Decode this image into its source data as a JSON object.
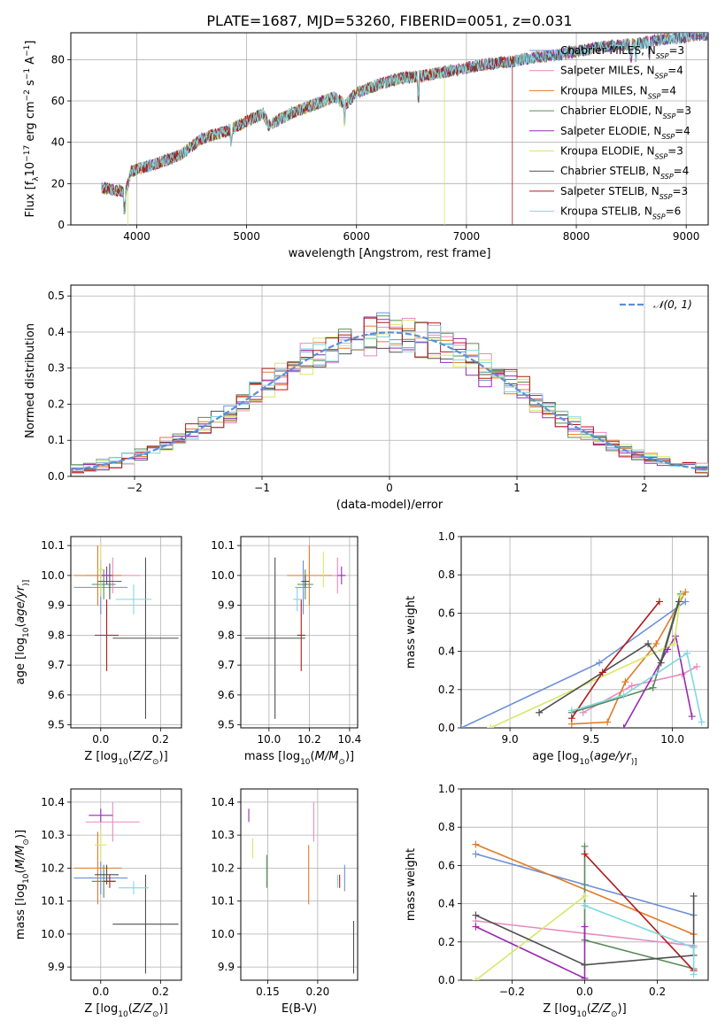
{
  "figure": {
    "title": "PLATE=1687, MJD=53260, FIBERID=0051, z=0.031"
  },
  "legend_top": [
    {
      "name": "Chabrier MILES",
      "sub": "SSP",
      "suffix": "=3",
      "color": "#6b8fd8"
    },
    {
      "name": "Salpeter MILES",
      "sub": "SSP",
      "suffix": "=4",
      "color": "#e889c0"
    },
    {
      "name": "Kroupa MILES",
      "sub": "SSP",
      "suffix": "=4",
      "color": "#e07b28"
    },
    {
      "name": "Chabrier ELODIE",
      "sub": "SSP",
      "suffix": "=3",
      "color": "#5a8a5a"
    },
    {
      "name": "Salpeter ELODIE",
      "sub": "SSP",
      "suffix": "=4",
      "color": "#9a2ab0"
    },
    {
      "name": "Kroupa ELODIE",
      "sub": "SSP",
      "suffix": "=3",
      "color": "#d6e86a"
    },
    {
      "name": "Chabrier STELIB",
      "sub": "SSP",
      "suffix": "=4",
      "color": "#505050"
    },
    {
      "name": "Salpeter STELIB",
      "sub": "SSP",
      "suffix": "=3",
      "color": "#b01a1a"
    },
    {
      "name": "Kroupa STELIB",
      "sub": "SSP",
      "suffix": "=6",
      "color": "#7fd8e0"
    }
  ],
  "legend_hist": {
    "label": "𝒩(0, 1)",
    "color": "#5b8fd8"
  },
  "chart_data": [
    {
      "id": "spectrum",
      "type": "line",
      "xlabel": "wavelength [Angstrom, rest frame]",
      "ylabel_parts": [
        "Flux [f",
        "λ",
        "10",
        "−17",
        " erg cm",
        "−2",
        " s",
        "−1",
        " A",
        "−1",
        "]"
      ],
      "xlim": [
        3400,
        9200
      ],
      "ylim": [
        0,
        93
      ],
      "xticks": [
        4000,
        5000,
        6000,
        7000,
        8000,
        9000
      ],
      "yticks": [
        0,
        20,
        40,
        60,
        80
      ],
      "continuum": [
        [
          3680,
          18
        ],
        [
          3900,
          16
        ],
        [
          3950,
          26
        ],
        [
          4000,
          27
        ],
        [
          4200,
          30
        ],
        [
          4400,
          34
        ],
        [
          4600,
          42
        ],
        [
          4800,
          45
        ],
        [
          5000,
          50
        ],
        [
          5150,
          54
        ],
        [
          5200,
          48
        ],
        [
          5400,
          54
        ],
        [
          5600,
          58
        ],
        [
          5800,
          62
        ],
        [
          5900,
          58
        ],
        [
          6000,
          64
        ],
        [
          6200,
          68
        ],
        [
          6400,
          71
        ],
        [
          6600,
          72
        ],
        [
          6800,
          74
        ],
        [
          7000,
          76
        ],
        [
          7200,
          78
        ],
        [
          7400,
          79
        ],
        [
          7600,
          81
        ],
        [
          7800,
          82
        ],
        [
          8000,
          84
        ],
        [
          8200,
          86
        ],
        [
          8400,
          87
        ],
        [
          8600,
          88
        ],
        [
          8800,
          90
        ],
        [
          9000,
          91
        ],
        [
          9100,
          92
        ]
      ],
      "dropouts": [
        {
          "series": "Kroupa ELODIE",
          "x": 6800
        },
        {
          "series": "Salpeter STELIB",
          "x": 7420
        },
        {
          "series": "Kroupa ELODIE",
          "x": 3920
        }
      ]
    },
    {
      "id": "residual-histogram",
      "type": "step",
      "xlabel": "(data-model)/error",
      "ylabel": "Normed distribution",
      "xlim": [
        -2.5,
        2.5
      ],
      "ylim": [
        0,
        0.53
      ],
      "xticks": [
        -2,
        -1,
        0,
        1,
        2
      ],
      "yticks": [
        0.0,
        0.1,
        0.2,
        0.3,
        0.4,
        0.5
      ],
      "gaussian": {
        "mean": 0,
        "sigma": 1
      },
      "bin_width": 0.1
    },
    {
      "id": "age-vs-Z",
      "type": "errorbar",
      "xlabel_parts": [
        "Z [log",
        "10",
        "(",
        "Z/Z",
        "⊙",
        ")]"
      ],
      "ylabel_parts": [
        "age  [log",
        "10",
        "(",
        "age/yr",
        ")]"
      ],
      "xlim": [
        -0.1,
        0.27
      ],
      "ylim": [
        9.49,
        10.13
      ],
      "xticks": [
        0.0,
        0.2
      ],
      "yticks": [
        9.5,
        9.6,
        9.7,
        9.8,
        9.9,
        10.0,
        10.1
      ],
      "points": [
        {
          "series": "Chabrier MILES",
          "x": 0.0,
          "y": 9.96,
          "xerr": 0.09,
          "yerr": 0.09
        },
        {
          "series": "Salpeter MILES",
          "x": 0.04,
          "y": 10.0,
          "xerr": 0.09,
          "yerr": 0.06
        },
        {
          "series": "Kroupa MILES",
          "x": -0.01,
          "y": 10.0,
          "xerr": 0.08,
          "yerr": 0.1
        },
        {
          "series": "Chabrier ELODIE",
          "x": 0.01,
          "y": 9.97,
          "xerr": 0.04,
          "yerr": 0.05
        },
        {
          "series": "Salpeter ELODIE",
          "x": 0.02,
          "y": 10.0,
          "xerr": 0.02,
          "yerr": 0.03
        },
        {
          "series": "Kroupa ELODIE",
          "x": 0.0,
          "y": 10.02,
          "xerr": 0.01,
          "yerr": 0.09
        },
        {
          "series": "Chabrier STELIB",
          "x": 0.03,
          "y": 9.98,
          "xerr": 0.04,
          "yerr": 0.06
        },
        {
          "series": "Salpeter STELIB",
          "x": 0.02,
          "y": 9.8,
          "xerr": 0.04,
          "yerr": 0.12
        },
        {
          "series": "Chabrier STELIB",
          "x": 0.15,
          "y": 9.79,
          "xerr": 0.11,
          "yerr": 0.27
        },
        {
          "series": "Kroupa STELIB",
          "x": 0.11,
          "y": 9.92,
          "xerr": 0.06,
          "yerr": 0.05
        }
      ]
    },
    {
      "id": "age-vs-mass",
      "type": "errorbar",
      "xlabel_parts": [
        "mass [log",
        "10",
        "(",
        "M/M",
        "⊙",
        ")]"
      ],
      "xlim": [
        9.86,
        10.44
      ],
      "ylim": [
        9.49,
        10.13
      ],
      "xticks": [
        10.0,
        10.2,
        10.4
      ],
      "yticks": [
        9.5,
        9.6,
        9.7,
        9.8,
        9.9,
        10.0,
        10.1
      ],
      "points": [
        {
          "series": "Chabrier MILES",
          "x": 10.17,
          "y": 9.96,
          "xerr": 0.04,
          "yerr": 0.09
        },
        {
          "series": "Salpeter MILES",
          "x": 10.34,
          "y": 10.0,
          "xerr": 0.04,
          "yerr": 0.06
        },
        {
          "series": "Kroupa MILES",
          "x": 10.2,
          "y": 10.0,
          "xerr": 0.11,
          "yerr": 0.1
        },
        {
          "series": "Chabrier ELODIE",
          "x": 10.18,
          "y": 9.97,
          "xerr": 0.04,
          "yerr": 0.05
        },
        {
          "series": "Salpeter ELODIE",
          "x": 10.36,
          "y": 10.0,
          "xerr": 0.02,
          "yerr": 0.03
        },
        {
          "series": "Kroupa ELODIE",
          "x": 10.27,
          "y": 10.02,
          "xerr": 0.0,
          "yerr": 0.06
        },
        {
          "series": "Chabrier STELIB",
          "x": 10.18,
          "y": 9.98,
          "xerr": 0.02,
          "yerr": 0.02
        },
        {
          "series": "Salpeter STELIB",
          "x": 10.16,
          "y": 9.8,
          "xerr": 0.02,
          "yerr": 0.12
        },
        {
          "series": "Chabrier STELIB",
          "x": 10.03,
          "y": 9.79,
          "xerr": 0.15,
          "yerr": 0.27
        },
        {
          "series": "Kroupa STELIB",
          "x": 10.14,
          "y": 9.92,
          "xerr": 0.02,
          "yerr": 0.04
        }
      ]
    },
    {
      "id": "mass-weight-vs-age",
      "type": "line",
      "xlabel_parts": [
        "age  [log",
        "10",
        "(",
        "age/yr",
        ")]"
      ],
      "ylabel": "mass weight",
      "xlim": [
        8.7,
        10.22
      ],
      "ylim": [
        0,
        1
      ],
      "xticks": [
        9.0,
        9.5,
        10.0
      ],
      "yticks": [
        0.0,
        0.2,
        0.4,
        0.6,
        0.8,
        1.0
      ],
      "series": [
        {
          "name": "Chabrier MILES",
          "points": [
            [
              8.7,
              0.0
            ],
            [
              9.55,
              0.34
            ],
            [
              10.08,
              0.66
            ]
          ]
        },
        {
          "name": "Salpeter MILES",
          "points": [
            [
              9.45,
              0.08
            ],
            [
              9.75,
              0.22
            ],
            [
              10.06,
              0.28
            ],
            [
              10.15,
              0.32
            ]
          ]
        },
        {
          "name": "Kroupa MILES",
          "points": [
            [
              9.38,
              0.02
            ],
            [
              9.6,
              0.03
            ],
            [
              9.71,
              0.24
            ],
            [
              9.9,
              0.44
            ],
            [
              10.08,
              0.71
            ]
          ]
        },
        {
          "name": "Chabrier ELODIE",
          "points": [
            [
              9.38,
              0.08
            ],
            [
              9.88,
              0.21
            ],
            [
              10.05,
              0.7
            ]
          ]
        },
        {
          "name": "Salpeter ELODIE",
          "points": [
            [
              9.7,
              0.0
            ],
            [
              9.97,
              0.41
            ],
            [
              10.02,
              0.48
            ],
            [
              10.12,
              0.06
            ]
          ]
        },
        {
          "name": "Kroupa ELODIE",
          "points": [
            [
              8.88,
              0.0
            ],
            [
              10.01,
              0.44
            ],
            [
              10.05,
              0.69
            ]
          ]
        },
        {
          "name": "Chabrier STELIB",
          "points": [
            [
              9.18,
              0.08
            ],
            [
              9.85,
              0.44
            ],
            [
              9.93,
              0.34
            ],
            [
              10.04,
              0.66
            ]
          ]
        },
        {
          "name": "Salpeter STELIB",
          "points": [
            [
              9.38,
              0.05
            ],
            [
              9.57,
              0.29
            ],
            [
              9.92,
              0.66
            ]
          ]
        },
        {
          "name": "Kroupa STELIB",
          "points": [
            [
              9.38,
              0.09
            ],
            [
              9.7,
              0.17
            ],
            [
              10.09,
              0.39
            ],
            [
              10.18,
              0.03
            ]
          ]
        }
      ]
    },
    {
      "id": "mass-vs-Z",
      "type": "errorbar",
      "xlabel_parts": [
        "Z [log",
        "10",
        "(",
        "Z/Z",
        "⊙",
        ")]"
      ],
      "ylabel_parts": [
        "mass [log",
        "10",
        "(",
        "M/M",
        "⊙",
        ")]"
      ],
      "xlim": [
        -0.1,
        0.27
      ],
      "ylim": [
        9.86,
        10.44
      ],
      "xticks": [
        0.0,
        0.2
      ],
      "yticks": [
        9.9,
        10.0,
        10.1,
        10.2,
        10.3,
        10.4
      ],
      "points": [
        {
          "series": "Chabrier MILES",
          "x": 0.0,
          "y": 10.17,
          "xerr": 0.09,
          "yerr": 0.05
        },
        {
          "series": "Salpeter MILES",
          "x": 0.04,
          "y": 10.34,
          "xerr": 0.09,
          "yerr": 0.06
        },
        {
          "series": "Kroupa MILES",
          "x": -0.01,
          "y": 10.2,
          "xerr": 0.08,
          "yerr": 0.11
        },
        {
          "series": "Chabrier ELODIE",
          "x": 0.01,
          "y": 10.16,
          "xerr": 0.04,
          "yerr": 0.05
        },
        {
          "series": "Salpeter ELODIE",
          "x": 0.0,
          "y": 10.36,
          "xerr": 0.04,
          "yerr": 0.02
        },
        {
          "series": "Kroupa ELODIE",
          "x": 0.0,
          "y": 10.27,
          "xerr": 0.02,
          "yerr": 0.05
        },
        {
          "series": "Chabrier STELIB",
          "x": 0.02,
          "y": 10.18,
          "xerr": 0.04,
          "yerr": 0.03
        },
        {
          "series": "Salpeter STELIB",
          "x": 0.03,
          "y": 10.16,
          "xerr": 0.02,
          "yerr": 0.02
        },
        {
          "series": "Chabrier STELIB",
          "x": 0.15,
          "y": 10.03,
          "xerr": 0.11,
          "yerr": 0.15
        },
        {
          "series": "Kroupa STELIB",
          "x": 0.11,
          "y": 10.14,
          "xerr": 0.05,
          "yerr": 0.02
        }
      ]
    },
    {
      "id": "mass-vs-EBV",
      "type": "errorbar",
      "xlabel": "E(B-V)",
      "xlim": [
        0.123,
        0.24
      ],
      "ylim": [
        9.86,
        10.44
      ],
      "xticks": [
        0.15,
        0.2
      ],
      "yticks": [
        9.9,
        10.0,
        10.1,
        10.2,
        10.3,
        10.4
      ],
      "points": [
        {
          "series": "Chabrier MILES",
          "x": 0.227,
          "y": 10.17,
          "xerr": 0,
          "yerr": 0.04
        },
        {
          "series": "Salpeter MILES",
          "x": 0.196,
          "y": 10.34,
          "xerr": 0,
          "yerr": 0.06
        },
        {
          "series": "Kroupa MILES",
          "x": 0.191,
          "y": 10.18,
          "xerr": 0,
          "yerr": 0.09
        },
        {
          "series": "Chabrier ELODIE",
          "x": 0.149,
          "y": 10.19,
          "xerr": 0,
          "yerr": 0.05
        },
        {
          "series": "Salpeter ELODIE",
          "x": 0.131,
          "y": 10.36,
          "xerr": 0,
          "yerr": 0.02
        },
        {
          "series": "Kroupa ELODIE",
          "x": 0.135,
          "y": 10.26,
          "xerr": 0,
          "yerr": 0.03
        },
        {
          "series": "Chabrier STELIB",
          "x": 0.236,
          "y": 9.96,
          "xerr": 0,
          "yerr": 0.08
        },
        {
          "series": "Salpeter STELIB",
          "x": 0.222,
          "y": 10.16,
          "xerr": 0,
          "yerr": 0.02
        },
        {
          "series": "Kroupa STELIB",
          "x": 0.22,
          "y": 10.16,
          "xerr": 0,
          "yerr": 0.02
        }
      ]
    },
    {
      "id": "mass-weight-vs-Z",
      "type": "line",
      "xlabel_parts": [
        "Z [log",
        "10",
        "(",
        "Z/Z",
        "⊙",
        ")]"
      ],
      "ylabel": "mass weight",
      "xlim": [
        -0.34,
        0.34
      ],
      "ylim": [
        0,
        1
      ],
      "xticks": [
        -0.2,
        0.0,
        0.2
      ],
      "yticks": [
        0.0,
        0.2,
        0.4,
        0.6,
        0.8,
        1.0
      ],
      "series": [
        {
          "name": "Chabrier MILES",
          "points": [
            [
              -0.3,
              0.66
            ],
            [
              0.0,
              0.5
            ],
            [
              0.3,
              0.34
            ]
          ]
        },
        {
          "name": "Salpeter MILES",
          "points": [
            [
              -0.3,
              0.31
            ],
            [
              0.3,
              0.18
            ]
          ]
        },
        {
          "name": "Kroupa MILES",
          "points": [
            [
              -0.3,
              0.71
            ],
            [
              0.3,
              0.24
            ]
          ]
        },
        {
          "name": "Chabrier ELODIE",
          "points": [
            [
              0.0,
              0.7
            ],
            [
              0.0,
              0.21
            ],
            [
              0.3,
              0.06
            ]
          ]
        },
        {
          "name": "Salpeter ELODIE",
          "points": [
            [
              -0.3,
              0.28
            ],
            [
              0.0,
              0.01
            ],
            [
              0.0,
              0.28
            ]
          ]
        },
        {
          "name": "Kroupa ELODIE",
          "points": [
            [
              -0.3,
              0.0
            ],
            [
              0.0,
              0.44
            ]
          ]
        },
        {
          "name": "Chabrier STELIB",
          "points": [
            [
              -0.3,
              0.34
            ],
            [
              0.0,
              0.08
            ],
            [
              0.3,
              0.13
            ],
            [
              0.3,
              0.44
            ]
          ]
        },
        {
          "name": "Salpeter STELIB",
          "points": [
            [
              0.0,
              0.66
            ],
            [
              0.3,
              0.05
            ]
          ]
        },
        {
          "name": "Kroupa STELIB",
          "points": [
            [
              0.0,
              0.39
            ],
            [
              0.3,
              0.17
            ],
            [
              0.3,
              0.03
            ]
          ]
        }
      ]
    }
  ]
}
